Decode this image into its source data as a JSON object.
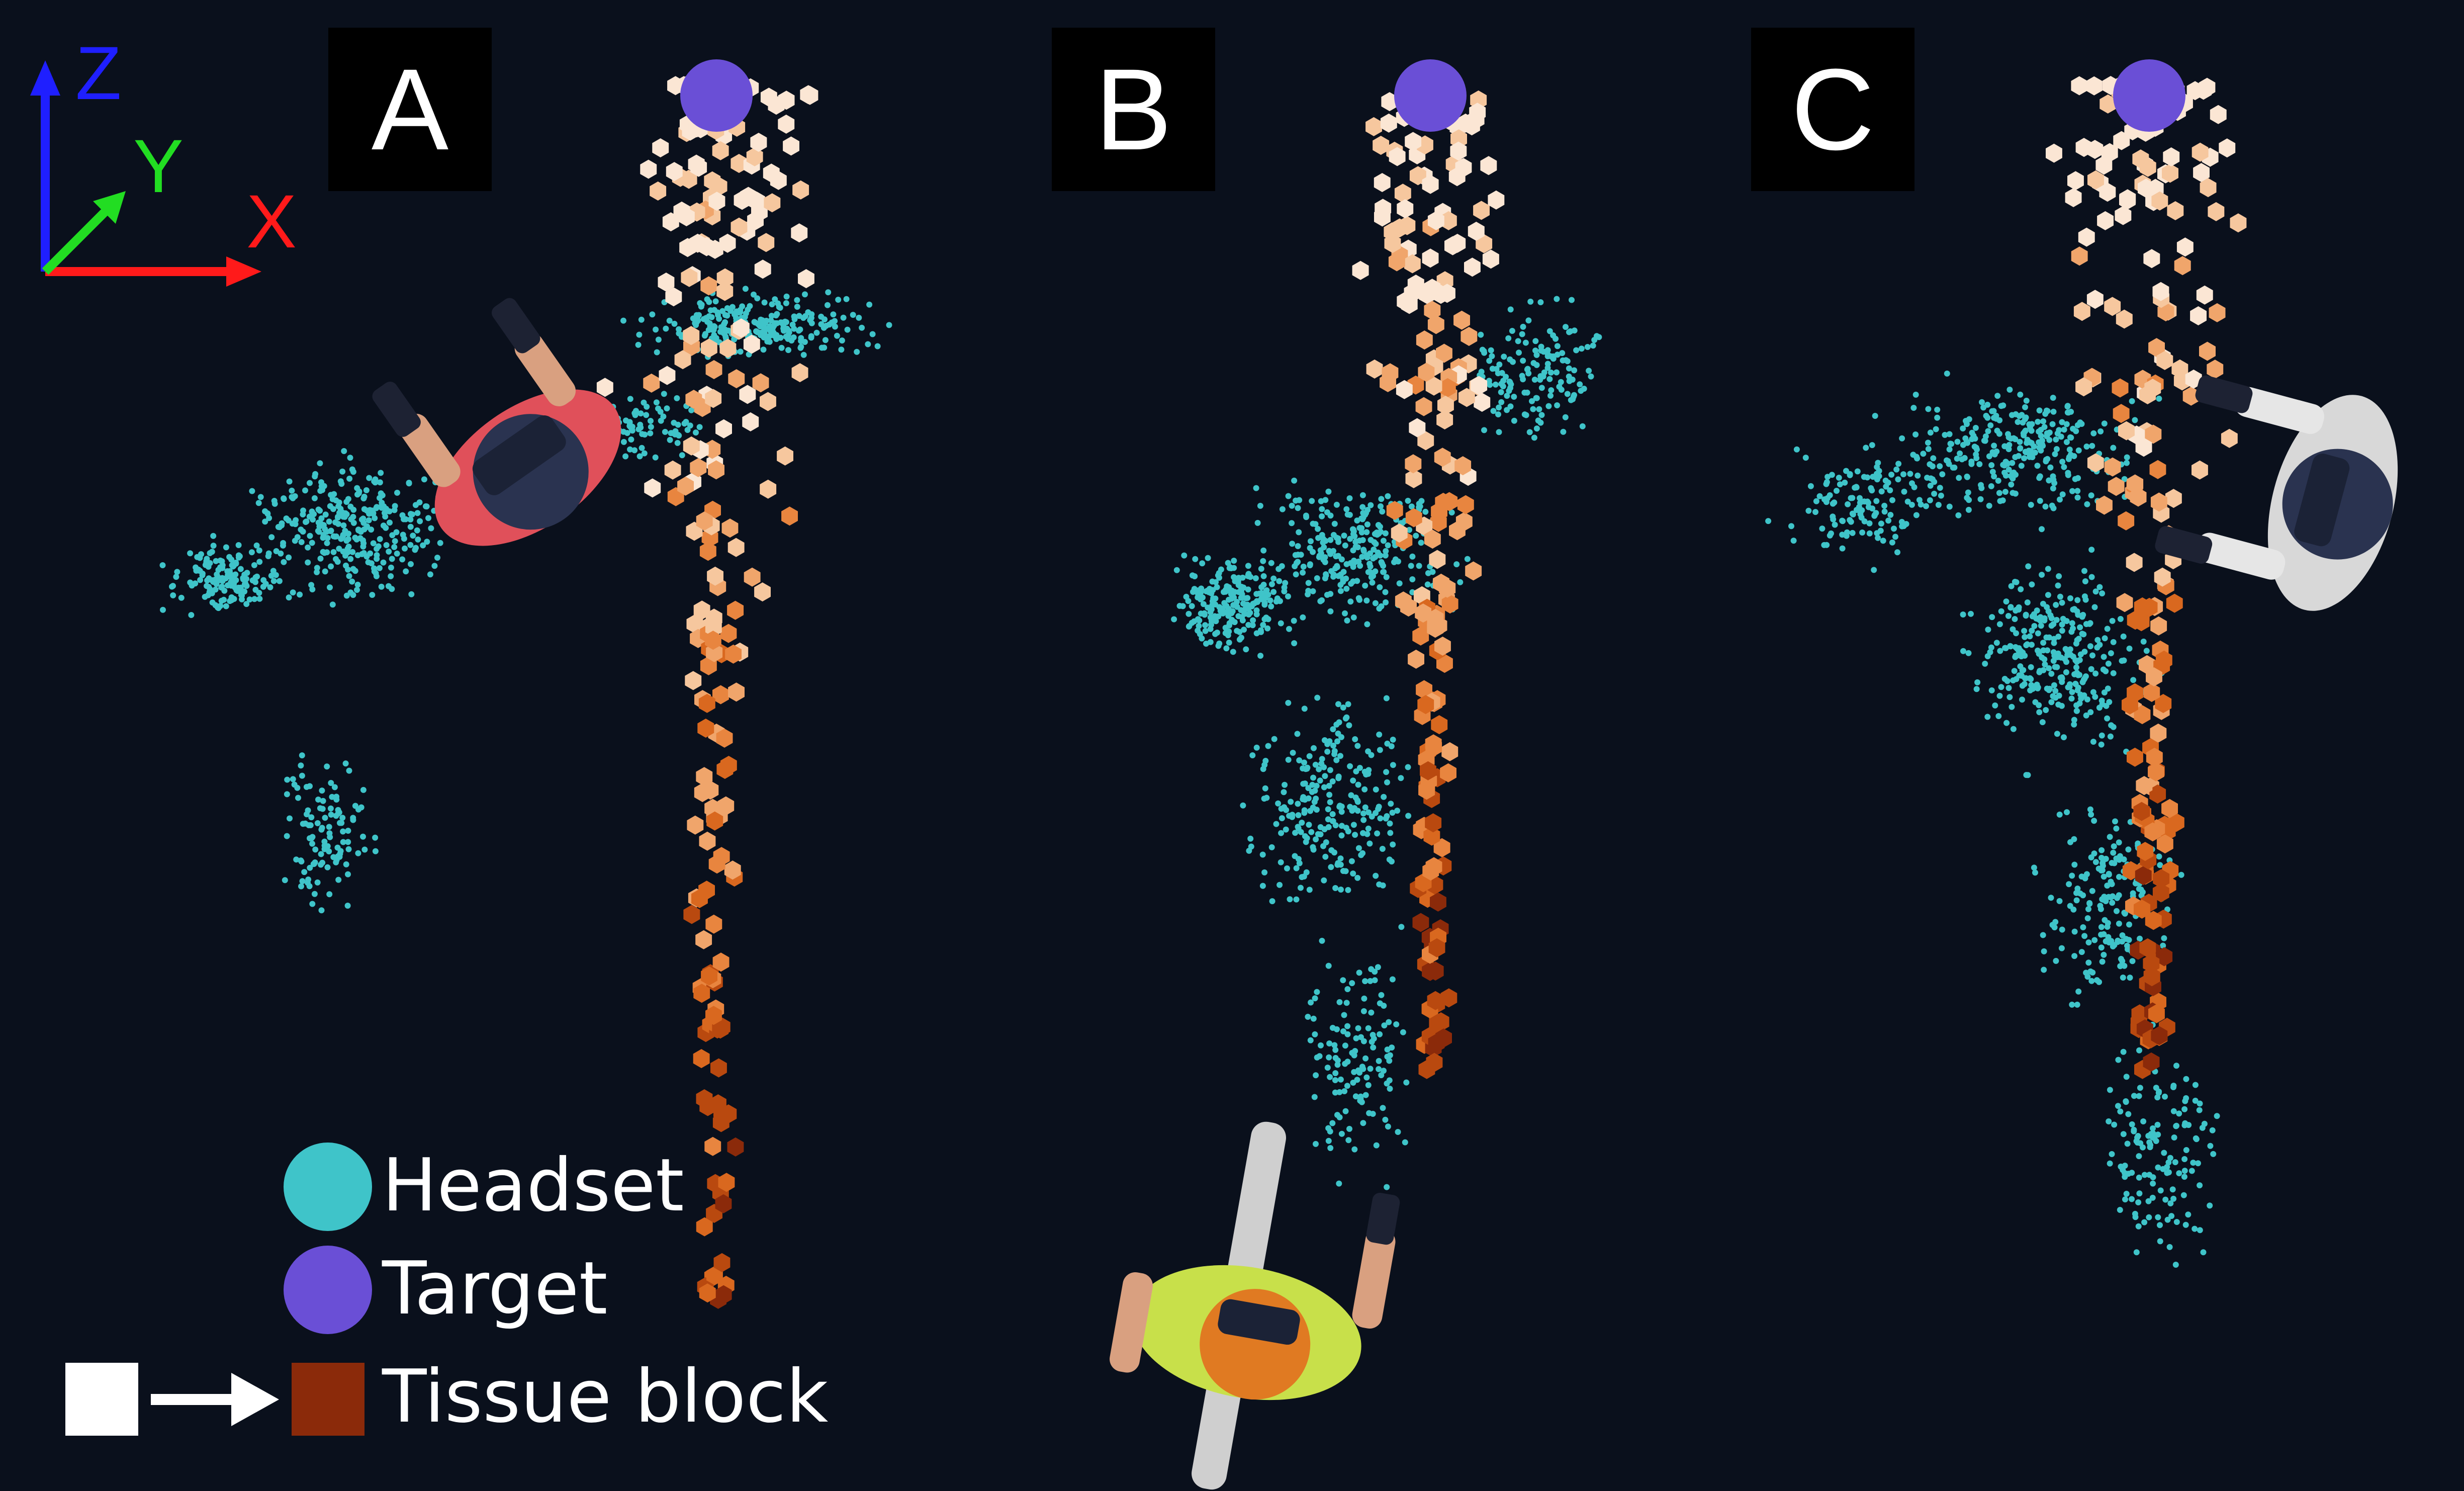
{
  "panels": [
    {
      "label": "A"
    },
    {
      "label": "B"
    },
    {
      "label": "C"
    }
  ],
  "axes": {
    "z_label": "Z",
    "y_label": "Y",
    "x_label": "X",
    "z_color": "#1f1fff",
    "y_color": "#22dd22",
    "x_color": "#ff1a1a"
  },
  "legend": {
    "headset": "Headset",
    "target": "Target",
    "tissue_block": "Tissue block"
  },
  "colors": {
    "background": "#0a101c",
    "headset": "#3fc4c9",
    "target": "#6a4fd6",
    "tissue_start": "#ffffff",
    "tissue_end": "#8b2a0a"
  },
  "figures": {
    "a_person_shirt": "#e0505a",
    "b_person_shirt": "#c8e04a",
    "c_person_shirt": "#d8d8d8"
  }
}
